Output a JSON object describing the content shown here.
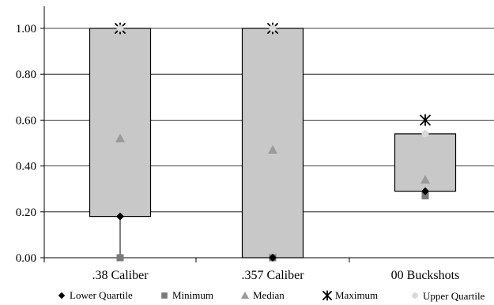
{
  "chart_data": {
    "type": "box",
    "title": "",
    "xlabel": "",
    "ylabel": "",
    "ylim": [
      0,
      1.0
    ],
    "yticks": [
      "0.00",
      "0.20",
      "0.40",
      "0.60",
      "0.80",
      "1.00"
    ],
    "grid": true,
    "categories": [
      ".38 Caliber",
      ".357 Caliber",
      "00 Buckshots"
    ],
    "series": [
      {
        "name": "Lower Quartile",
        "marker": "diamond",
        "values": [
          0.18,
          0.0,
          0.29
        ]
      },
      {
        "name": "Minimum",
        "marker": "square",
        "values": [
          0.0,
          0.0,
          0.27
        ]
      },
      {
        "name": "Median",
        "marker": "triangle",
        "values": [
          0.52,
          0.47,
          0.34
        ]
      },
      {
        "name": "Maximum",
        "marker": "asterisk",
        "values": [
          1.0,
          1.0,
          0.6
        ]
      },
      {
        "name": "Upper Quartile",
        "marker": "circle",
        "values": [
          1.0,
          1.0,
          0.54
        ]
      }
    ],
    "legend_position": "bottom",
    "colors": {
      "box_fill": "#c8c8c8",
      "box_stroke": "#000000",
      "diamond": "#000000",
      "square": "#7a7a7a",
      "triangle": "#9a9a9a",
      "asterisk": "#000000",
      "circle": "#d9d9d9",
      "grid": "#000000"
    }
  }
}
